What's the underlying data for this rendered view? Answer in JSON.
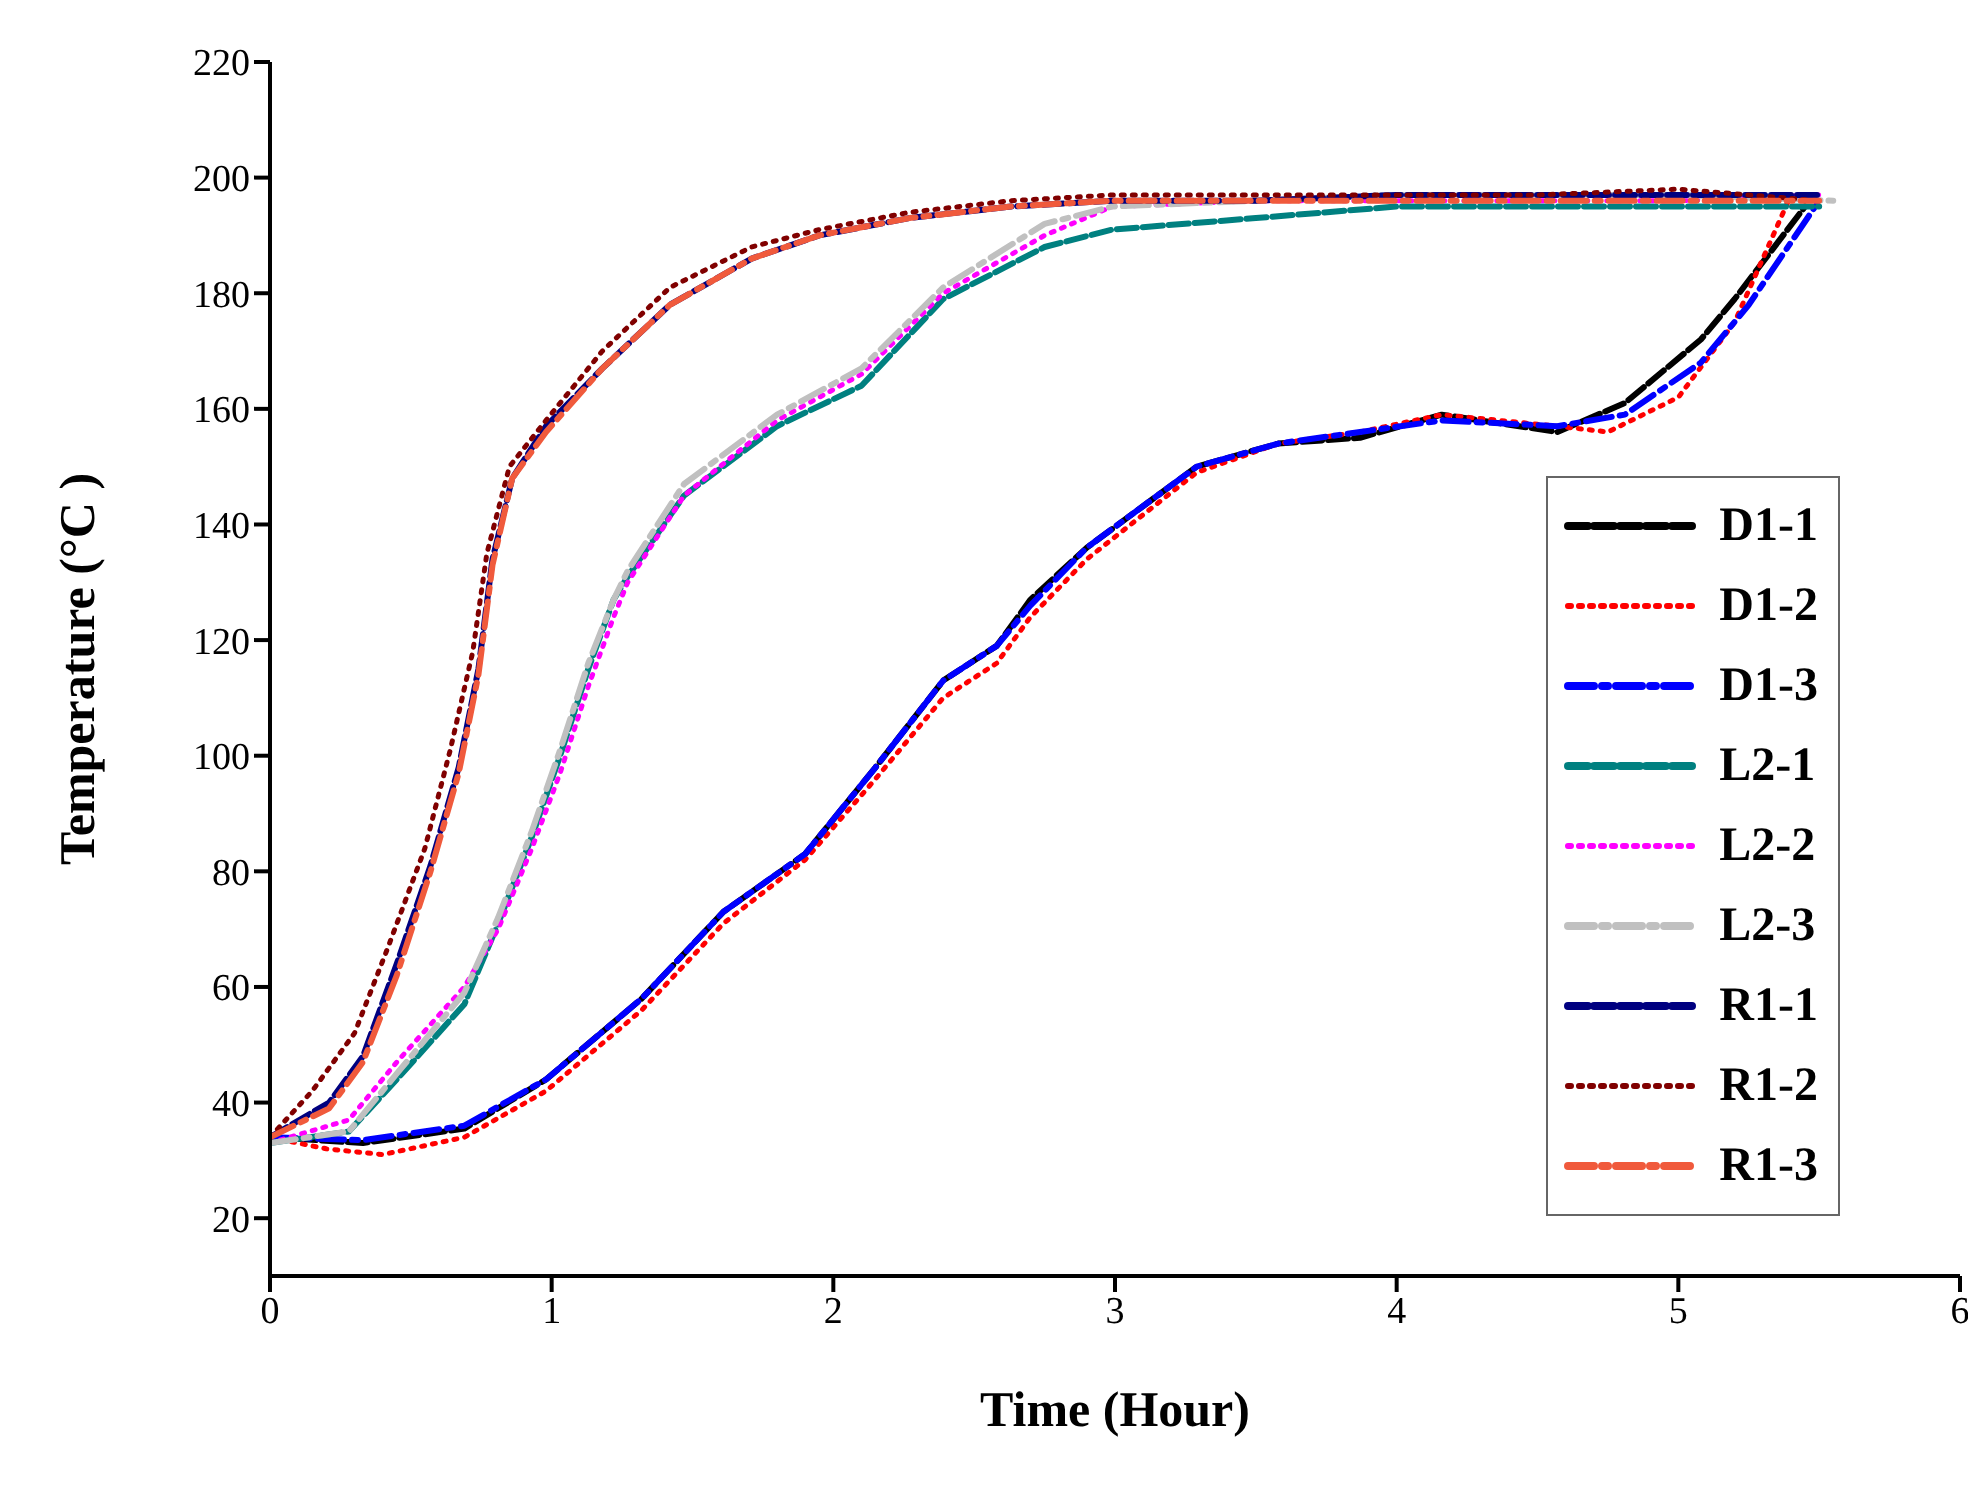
{
  "chart_data": {
    "type": "line",
    "xlabel": "Time (Hour)",
    "ylabel": "Temperature (°C )",
    "xlim": [
      0,
      6
    ],
    "xticks": [
      0,
      1,
      2,
      3,
      4,
      5,
      6
    ],
    "ylim": [
      10,
      220
    ],
    "yticks": [
      20,
      40,
      60,
      80,
      100,
      120,
      140,
      160,
      180,
      200,
      220
    ],
    "legend": "right",
    "marker": "none",
    "series": [
      {
        "name": "D1-1",
        "color": "#000000",
        "line_style": "dashed",
        "x": [
          0,
          0.33,
          0.69,
          0.98,
          1.32,
          1.61,
          1.9,
          2.15,
          2.39,
          2.58,
          2.7,
          2.9,
          3.29,
          3.58,
          3.87,
          4.16,
          4.57,
          4.81,
          5.08,
          5.2,
          5.45
        ],
        "values": [
          34,
          33,
          35.5,
          44,
          58,
          73,
          83,
          98,
          113,
          119,
          127,
          136,
          150,
          154,
          155,
          159,
          156,
          161,
          172,
          179,
          195
        ]
      },
      {
        "name": "D1-2",
        "color": "#ff0000",
        "line_style": "dotted",
        "x": [
          0,
          0.2,
          0.4,
          0.69,
          0.98,
          1.32,
          1.61,
          1.9,
          2.15,
          2.39,
          2.58,
          2.7,
          2.9,
          3.29,
          3.58,
          3.87,
          4.16,
          4.57,
          4.75,
          5.0,
          5.2,
          5.4
        ],
        "values": [
          34,
          32,
          31,
          34,
          42,
          56,
          71,
          82,
          96,
          110,
          116,
          124,
          134,
          149,
          154,
          156,
          159,
          157,
          156,
          162,
          175,
          197
        ]
      },
      {
        "name": "D1-3",
        "color": "#0000ff",
        "line_style": "dashdot",
        "x": [
          0,
          0.33,
          0.69,
          0.98,
          1.32,
          1.61,
          1.9,
          2.15,
          2.39,
          2.58,
          2.7,
          2.9,
          3.29,
          3.58,
          3.87,
          4.16,
          4.57,
          4.81,
          5.08,
          5.25,
          5.5
        ],
        "values": [
          34,
          33.5,
          36,
          44,
          58,
          73,
          83,
          98,
          113,
          119,
          126,
          136,
          150,
          154,
          156,
          158,
          157,
          159,
          168,
          178,
          196
        ]
      },
      {
        "name": "L2-1",
        "color": "#008080",
        "line_style": "dashed",
        "x": [
          0,
          0.28,
          0.45,
          0.69,
          0.81,
          0.93,
          1.03,
          1.13,
          1.22,
          1.27,
          1.47,
          1.8,
          2.1,
          2.39,
          2.75,
          2.99,
          3.5,
          4,
          4.5,
          5,
          5.5
        ],
        "values": [
          33,
          35,
          44,
          57,
          71,
          86,
          100,
          115,
          127,
          131,
          145,
          157,
          164,
          179,
          188,
          191,
          193,
          195,
          195,
          195,
          195
        ]
      },
      {
        "name": "L2-2",
        "color": "#ff00ff",
        "line_style": "dotted",
        "x": [
          0,
          0.28,
          0.45,
          0.69,
          0.81,
          0.93,
          1.03,
          1.13,
          1.22,
          1.27,
          1.47,
          1.8,
          2.1,
          2.39,
          2.75,
          2.99,
          3.5,
          4,
          4.5,
          5,
          5.5
        ],
        "values": [
          33,
          37,
          47,
          60,
          70,
          84,
          97,
          112,
          124,
          130,
          145,
          158,
          166,
          180,
          190,
          195,
          196,
          196,
          196,
          196,
          197
        ]
      },
      {
        "name": "L2-3",
        "color": "#c0c0c0",
        "line_style": "dashdot",
        "x": [
          0,
          0.28,
          0.45,
          0.69,
          0.81,
          0.93,
          1.03,
          1.13,
          1.22,
          1.27,
          1.47,
          1.8,
          2.1,
          2.39,
          2.75,
          2.99,
          3.5,
          4,
          4.5,
          5,
          5.55
        ],
        "values": [
          33,
          35,
          45,
          59,
          72,
          87,
          101,
          116,
          127,
          132,
          147,
          159,
          167,
          181,
          192,
          195,
          196,
          197,
          197,
          197,
          196
        ]
      },
      {
        "name": "R1-1",
        "color": "#000080",
        "line_style": "dashed",
        "x": [
          0,
          0.21,
          0.33,
          0.45,
          0.57,
          0.67,
          0.74,
          0.79,
          0.86,
          0.98,
          1.18,
          1.42,
          1.71,
          1.95,
          2.27,
          2.63,
          2.99,
          3.5,
          4,
          4.5,
          5,
          5.5
        ],
        "values": [
          34,
          40,
          48,
          64,
          81,
          98,
          115,
          134,
          148,
          157,
          167,
          178,
          186,
          190,
          193,
          195,
          196,
          196,
          197,
          197,
          197,
          197
        ]
      },
      {
        "name": "R1-2",
        "color": "#800000",
        "line_style": "dotted",
        "x": [
          0,
          0.15,
          0.3,
          0.42,
          0.55,
          0.64,
          0.72,
          0.77,
          0.85,
          0.98,
          1.18,
          1.42,
          1.71,
          1.95,
          2.27,
          2.63,
          2.99,
          3.5,
          4,
          4.5,
          5,
          5.5
        ],
        "values": [
          34,
          42,
          52,
          67,
          84,
          101,
          118,
          135,
          150,
          158,
          170,
          181,
          188,
          191,
          194,
          196,
          197,
          197,
          197,
          197,
          198,
          196
        ]
      },
      {
        "name": "R1-3",
        "color": "#f05a3c",
        "line_style": "dashdot",
        "x": [
          0,
          0.21,
          0.33,
          0.45,
          0.57,
          0.67,
          0.74,
          0.79,
          0.86,
          0.98,
          1.18,
          1.42,
          1.71,
          1.95,
          2.27,
          2.63,
          2.99,
          3.5,
          4,
          4.5,
          5,
          5.5
        ],
        "values": [
          34,
          39,
          47,
          62,
          80,
          97,
          114,
          133,
          148,
          156,
          167,
          178,
          186,
          190,
          193,
          195,
          196,
          196,
          196,
          196,
          196,
          196
        ]
      }
    ]
  }
}
